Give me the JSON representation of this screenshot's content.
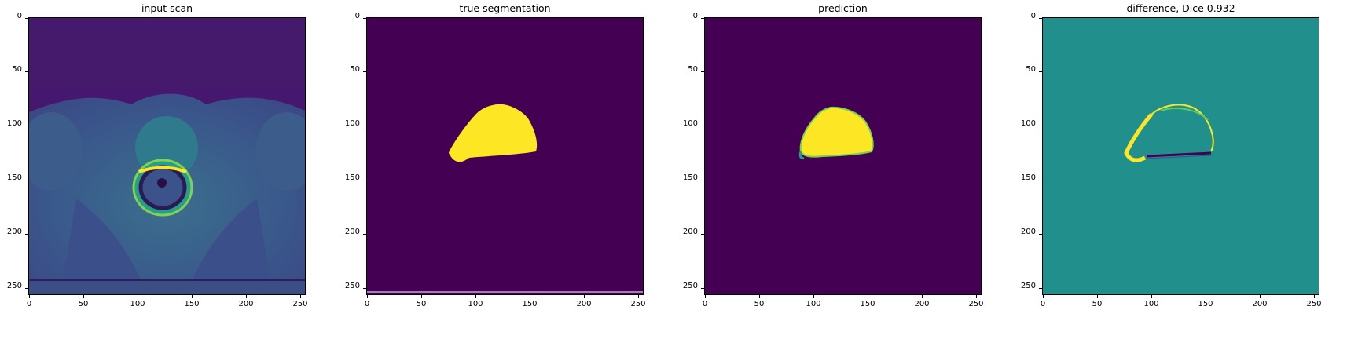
{
  "figure": {
    "panels": [
      {
        "title": "input scan",
        "kind": "scan"
      },
      {
        "title": "true segmentation",
        "kind": "truth"
      },
      {
        "title": "prediction",
        "kind": "prediction"
      },
      {
        "title": "difference, Dice 0.932",
        "kind": "difference"
      }
    ],
    "axis_ticks": {
      "x": [
        "0",
        "50",
        "100",
        "150",
        "200",
        "250"
      ],
      "y": [
        "0",
        "50",
        "100",
        "150",
        "200",
        "250"
      ]
    },
    "colormap": {
      "low": "#440154",
      "mid": "#21908c",
      "high": "#fde725",
      "teal": "#2a9a8a",
      "green": "#5ec962"
    }
  }
}
